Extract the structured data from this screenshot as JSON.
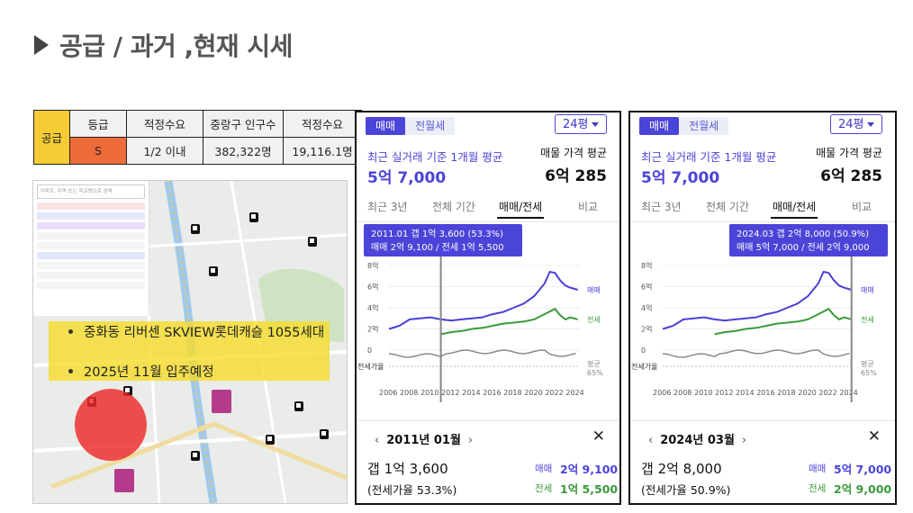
{
  "title": "공급 / 과거 ,현재 시세",
  "supply_table": {
    "row_label": "공급",
    "headers": [
      "등급",
      "적정수요",
      "중랑구 인구수",
      "적정수요"
    ],
    "values": [
      "S",
      "1/2 이내",
      "382,322명",
      "19,116.1명"
    ]
  },
  "map": {
    "search_placeholder": "아파트, 지역 또는 학교명으로 검색",
    "notes": [
      "중화동 리버센 SKVIEW롯데캐슬 1055세대",
      "2025년 11월 입주예정"
    ],
    "circle_color": "#ed2a2a",
    "note_bg": "#f5dc28"
  },
  "cards": [
    {
      "tabs": [
        "매매",
        "전월세"
      ],
      "size": "24평",
      "subtitle": "최근 실거래 기준 1개월 평균",
      "price": "5억 7,000",
      "right_label": "매물 가격 평균",
      "right_value": "6억 285",
      "chart_tabs": [
        "최근 3년",
        "전체 기간",
        "매매/전세",
        "비교"
      ],
      "tooltip_line1": "2011.01  갭 1억 3,600 (53.3%)",
      "tooltip_line2": "매매 2억 9,100 / 전세 1억 5,500",
      "month": "2011년 01월",
      "gap": "갭 1억 3,600",
      "ratio": "(전세가율 53.3%)",
      "sale_label": "매매",
      "sale_value": "2억 9,100",
      "jeonse_label": "전세",
      "jeonse_value": "1억 5,500",
      "marker_year": 2011.0
    },
    {
      "tabs": [
        "매매",
        "전월세"
      ],
      "size": "24평",
      "subtitle": "최근 실거래 기준 1개월 평균",
      "price": "5억 7,000",
      "right_label": "매물 가격 평균",
      "right_value": "6억 285",
      "chart_tabs": [
        "최근 3년",
        "전체 기간",
        "매매/전세",
        "비교"
      ],
      "tooltip_line1": "2024.03  갭 2억 8,000 (50.9%)",
      "tooltip_line2": "매매 5억 7,000 / 전세 2억 9,000",
      "month": "2024년 03월",
      "gap": "갭 2억 8,000",
      "ratio": "(전세가율 50.9%)",
      "sale_label": "매매",
      "sale_value": "5억 7,000",
      "jeonse_label": "전세",
      "jeonse_value": "2억 9,000",
      "marker_year": 2024.2
    }
  ],
  "chart_data": {
    "type": "line",
    "x_ticks": [
      "2006",
      "2008",
      "2010",
      "2012",
      "2014",
      "2016",
      "2018",
      "2020",
      "2022",
      "2024"
    ],
    "y_ticks": [
      "8억",
      "6억",
      "4억",
      "2억",
      "0"
    ],
    "ylim": [
      0,
      8
    ],
    "lower_label": "전세가율",
    "avg_label": "평균",
    "avg_value": "65%",
    "colors": {
      "sale": "#4b3fd6",
      "jeonse": "#3a9a3c",
      "ratio": "#8a8a8a"
    },
    "series": [
      {
        "name": "매매",
        "x": [
          2006.0,
          2007.0,
          2008.0,
          2009.0,
          2010.0,
          2011.0,
          2012.0,
          2013.0,
          2014.0,
          2015.0,
          2016.0,
          2017.0,
          2018.0,
          2019.0,
          2020.0,
          2021.0,
          2021.5,
          2022.0,
          2022.5,
          2023.0,
          2023.5,
          2024.2
        ],
        "values": [
          2.0,
          2.3,
          2.9,
          3.0,
          3.1,
          2.9,
          2.8,
          2.9,
          3.0,
          3.1,
          3.4,
          3.6,
          4.0,
          4.4,
          5.1,
          6.3,
          7.4,
          7.3,
          6.6,
          6.1,
          5.9,
          5.7
        ]
      },
      {
        "name": "전세",
        "x": [
          2011.0,
          2012.0,
          2013.0,
          2014.0,
          2015.0,
          2016.0,
          2017.0,
          2018.0,
          2019.0,
          2020.0,
          2021.0,
          2022.0,
          2022.5,
          2023.0,
          2023.5,
          2024.2
        ],
        "values": [
          1.5,
          1.7,
          1.8,
          2.0,
          2.1,
          2.3,
          2.5,
          2.6,
          2.7,
          2.9,
          3.4,
          3.9,
          3.3,
          2.9,
          3.1,
          2.9
        ]
      }
    ]
  }
}
